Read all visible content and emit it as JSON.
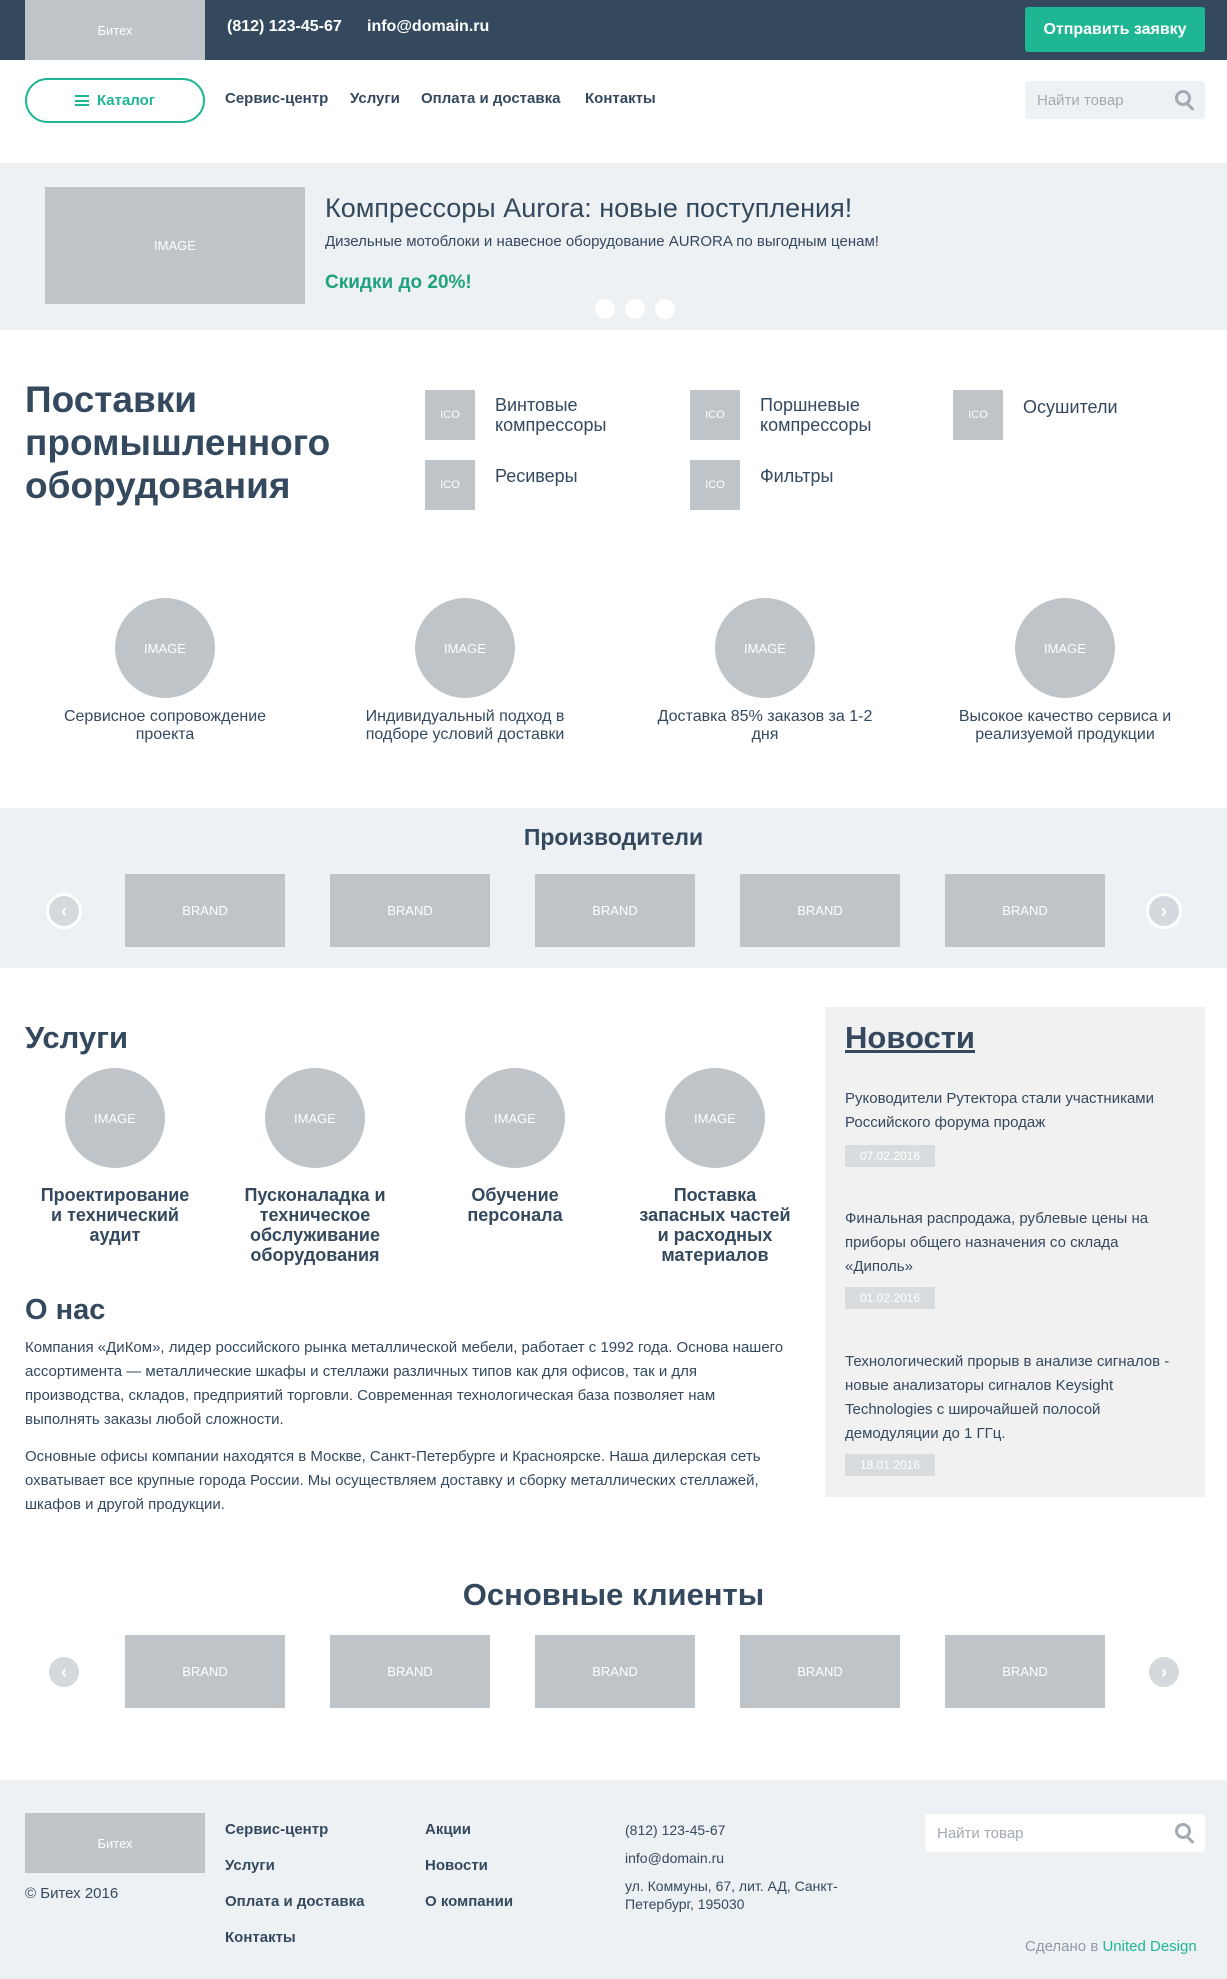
{
  "topbar": {
    "logo": "Битех",
    "phone": "(812) 123-45-67",
    "email": "info@domain.ru",
    "request_button": "Отправить заявку"
  },
  "nav": {
    "catalog_button": "Каталог",
    "links": [
      "Сервис-центр",
      "Услуги",
      "Оплата и доставка",
      "Контакты"
    ],
    "search_placeholder": "Найти товар"
  },
  "hero": {
    "image_label": "IMAGE",
    "title": "Компрессоры Aurora: новые поступления!",
    "subtitle": "Дизельные мотоблоки и навесное оборудование AURORA по выгодным ценам!",
    "promo": "Скидки до 20%!",
    "active_slide": 2,
    "slide_count": 3
  },
  "supplies": {
    "title": "Поставки промышленного оборудования",
    "icon_label": "ICO",
    "categories": [
      "Винтовые компрессоры",
      "Поршневые компрессоры",
      "Осушители",
      "Ресиверы",
      "Фильтры"
    ]
  },
  "features": {
    "image_label": "IMAGE",
    "items": [
      "Сервисное сопровождение проекта",
      "Индивидуальный подход в подборе условий доставки",
      "Доставка 85% заказов за 1-2 дня",
      "Высокое качество сервиса и реализуемой продукции"
    ]
  },
  "producers": {
    "title": "Производители",
    "brand_label": "BRAND",
    "brands": [
      "BRAND",
      "BRAND",
      "BRAND",
      "BRAND",
      "BRAND"
    ]
  },
  "services": {
    "title": "Услуги",
    "image_label": "IMAGE",
    "items": [
      "Проектирование и технический аудит",
      "Пусконаладка и техническое обслуживание оборудования",
      "Обучение персонала",
      "Поставка запасных частей и расходных материалов"
    ]
  },
  "about": {
    "title": "О нас",
    "paragraphs": [
      "Компания «ДиКом», лидер российского рынка металлической мебели, работает с 1992 года. Основа нашего ассортимента — металлические шкафы и стеллажи различных типов как для офисов, так и для производства, складов, предприятий торговли. Современная технологическая база позволяет нам выполнять заказы любой сложности.",
      "Основные офисы компании находятся в Москве, Санкт-Петербурге и Красноярске. Наша дилерская сеть охватывает все крупные города России. Мы осуществляем доставку и сборку металлических стеллажей, шкафов и другой продукции."
    ]
  },
  "news": {
    "title": "Новости",
    "items": [
      {
        "text": "Руководители Рутектора стали участниками Российского форума продаж",
        "date": "07.02.2016"
      },
      {
        "text": "Финальная распродажа, рублевые цены на приборы общего назначения со склада «Диполь»",
        "date": "01.02.2016"
      },
      {
        "text": "Технологический прорыв в анализе сигналов - новые анализаторы сигналов Keysight Technologies с широчайшей полосой демодуляции  до 1 ГГц.",
        "date": "18.01.2016"
      }
    ]
  },
  "clients": {
    "title": "Основные клиенты",
    "brands": [
      "BRAND",
      "BRAND",
      "BRAND",
      "BRAND",
      "BRAND"
    ]
  },
  "footer": {
    "logo": "Битех",
    "copyright": "© Битех 2016",
    "col1": [
      "Сервис-центр",
      "Услуги",
      "Оплата и доставка",
      "Контакты"
    ],
    "col2": [
      "Акции",
      "Новости",
      "О компании"
    ],
    "phone": "(812) 123-45-67",
    "email": "info@domain.ru",
    "address": "ул. Коммуны, 67, лит. АД, Санкт-Петербург, 195030",
    "search_placeholder": "Найти товар",
    "made_by_prefix": "Сделано в",
    "made_by_link": "United Design"
  },
  "colors": {
    "dark": "#34495e",
    "accent": "#1fb793",
    "light_bg": "#eef1f4",
    "placeholder": "#bfc4c9"
  },
  "icons": [
    "hamburger-icon",
    "search-icon",
    "chevron-left-icon",
    "chevron-right-icon"
  ]
}
